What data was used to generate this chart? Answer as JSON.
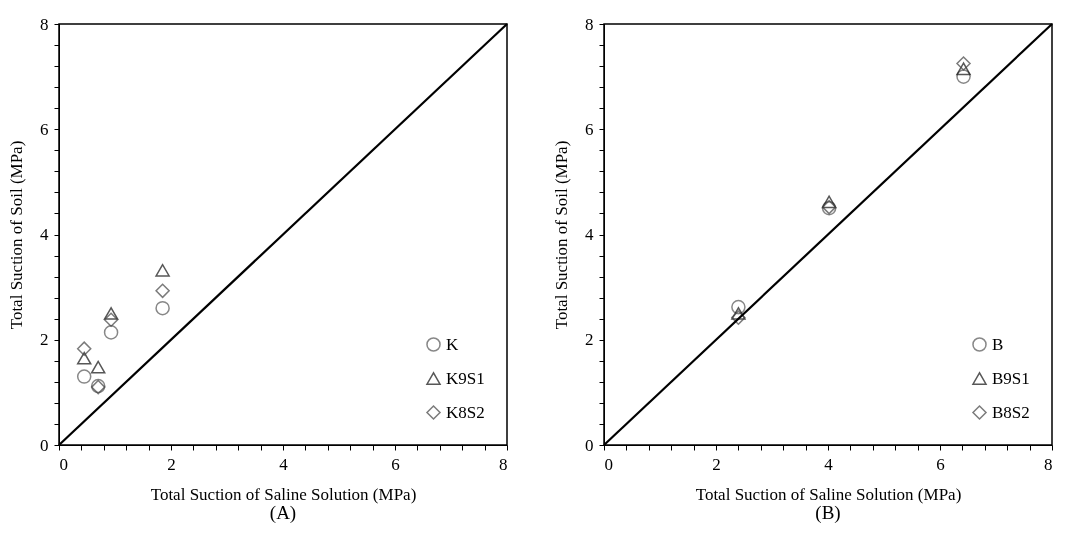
{
  "chart_data": [
    {
      "type": "scatter",
      "title": "(A)",
      "xlabel": "Total Suction of Saline Solution (MPa)",
      "ylabel": "Total Suction of Soil (MPa)",
      "xlim": [
        0,
        8
      ],
      "ylim": [
        0,
        8
      ],
      "xticks": [
        0,
        {
          "value": 0.4,
          "label": null
        },
        {
          "value": 0.8,
          "label": null
        },
        {
          "value": 1.2,
          "label": null
        },
        {
          "value": 1.6,
          "label": null
        },
        2,
        {
          "value": 2.4,
          "label": null
        },
        {
          "value": 2.8,
          "label": null
        },
        {
          "value": 3.2,
          "label": null
        },
        {
          "value": 3.6,
          "label": null
        },
        4,
        {
          "value": 4.4,
          "label": null
        },
        {
          "value": 4.8,
          "label": null
        },
        {
          "value": 5.2,
          "label": null
        },
        {
          "value": 5.6,
          "label": null
        },
        6,
        {
          "value": 6.4,
          "label": null
        },
        {
          "value": 6.8,
          "label": null
        },
        {
          "value": 7.2,
          "label": null
        },
        {
          "value": 7.6,
          "label": null
        },
        8
      ],
      "yticks": [
        0,
        {
          "value": 0.4,
          "label": null
        },
        {
          "value": 0.8,
          "label": null
        },
        {
          "value": 1.2,
          "label": null
        },
        {
          "value": 1.6,
          "label": null
        },
        2,
        {
          "value": 2.4,
          "label": null
        },
        {
          "value": 2.8,
          "label": null
        },
        {
          "value": 3.2,
          "label": null
        },
        {
          "value": 3.6,
          "label": null
        },
        4,
        {
          "value": 4.4,
          "label": null
        },
        {
          "value": 4.8,
          "label": null
        },
        {
          "value": 5.2,
          "label": null
        },
        {
          "value": 5.6,
          "label": null
        },
        6,
        {
          "value": 6.4,
          "label": null
        },
        {
          "value": 6.8,
          "label": null
        },
        {
          "value": 7.2,
          "label": null
        },
        {
          "value": 7.6,
          "label": null
        },
        8
      ],
      "legend": "bottom right",
      "series": [
        {
          "name": "K",
          "color": "#555555",
          "marker": "circle",
          "x": [
            0.45,
            0.7,
            0.93,
            1.85
          ],
          "values": [
            1.3,
            1.12,
            2.14,
            2.6
          ]
        },
        {
          "name": "K9S1",
          "color": "#111111",
          "marker": "triangle",
          "x": [
            0.45,
            0.7,
            0.93,
            1.85
          ],
          "values": [
            1.65,
            1.48,
            2.5,
            3.32
          ]
        },
        {
          "name": "K8S2",
          "color": "#444444",
          "marker": "diamond",
          "x": [
            0.45,
            0.7,
            0.93,
            1.85
          ],
          "values": [
            1.83,
            1.1,
            2.38,
            2.93
          ]
        },
        {
          "type": "line",
          "color": "#000000",
          "x": [
            0,
            8
          ],
          "values": [
            0,
            8
          ]
        }
      ]
    },
    {
      "type": "scatter",
      "title": "(B)",
      "xlabel": "Total Suction of Saline Solution (MPa)",
      "ylabel": "Total Suction of Soil (MPa)",
      "xlim": [
        0,
        8
      ],
      "ylim": [
        0,
        8
      ],
      "xticks": [
        0,
        {
          "value": 0.4,
          "label": null
        },
        {
          "value": 0.8,
          "label": null
        },
        {
          "value": 1.2,
          "label": null
        },
        {
          "value": 1.6,
          "label": null
        },
        2,
        {
          "value": 2.4,
          "label": null
        },
        {
          "value": 2.8,
          "label": null
        },
        {
          "value": 3.2,
          "label": null
        },
        {
          "value": 3.6,
          "label": null
        },
        4,
        {
          "value": 4.4,
          "label": null
        },
        {
          "value": 4.8,
          "label": null
        },
        {
          "value": 5.2,
          "label": null
        },
        {
          "value": 5.6,
          "label": null
        },
        6,
        {
          "value": 6.4,
          "label": null
        },
        {
          "value": 6.8,
          "label": null
        },
        {
          "value": 7.2,
          "label": null
        },
        {
          "value": 7.6,
          "label": null
        },
        8
      ],
      "yticks": [
        0,
        {
          "value": 0.4,
          "label": null
        },
        {
          "value": 0.8,
          "label": null
        },
        {
          "value": 1.2,
          "label": null
        },
        {
          "value": 1.6,
          "label": null
        },
        2,
        {
          "value": 2.4,
          "label": null
        },
        {
          "value": 2.8,
          "label": null
        },
        {
          "value": 3.2,
          "label": null
        },
        {
          "value": 3.6,
          "label": null
        },
        4,
        {
          "value": 4.4,
          "label": null
        },
        {
          "value": 4.8,
          "label": null
        },
        {
          "value": 5.2,
          "label": null
        },
        {
          "value": 5.6,
          "label": null
        },
        6,
        {
          "value": 6.4,
          "label": null
        },
        {
          "value": 6.8,
          "label": null
        },
        {
          "value": 7.2,
          "label": null
        },
        {
          "value": 7.6,
          "label": null
        },
        8
      ],
      "legend": "bottom right",
      "series": [
        {
          "name": "B",
          "color": "#555555",
          "marker": "circle",
          "x": [
            2.4,
            4.02,
            6.42
          ],
          "values": [
            2.62,
            4.5,
            7.0
          ]
        },
        {
          "name": "B9S1",
          "color": "#111111",
          "marker": "triangle",
          "x": [
            2.4,
            4.02,
            6.42
          ],
          "values": [
            2.5,
            4.62,
            7.15
          ]
        },
        {
          "name": "B8S2",
          "color": "#444444",
          "marker": "diamond",
          "x": [
            2.4,
            4.02,
            6.42
          ],
          "values": [
            2.42,
            4.52,
            7.25
          ]
        },
        {
          "type": "line",
          "color": "#000000",
          "x": [
            0,
            8
          ],
          "values": [
            0,
            8
          ]
        }
      ]
    }
  ]
}
